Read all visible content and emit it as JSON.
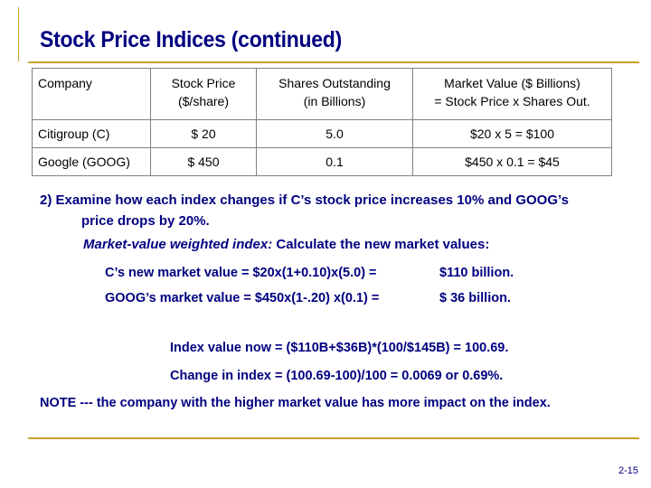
{
  "slide": {
    "title": "Stock Price Indices (continued)",
    "page_number": "2-15"
  },
  "table": {
    "headers": [
      {
        "line1": "Company",
        "line2": ""
      },
      {
        "line1": "Stock Price",
        "line2": "($/share)"
      },
      {
        "line1": "Shares Outstanding",
        "line2": "(in Billions)"
      },
      {
        "line1": "Market Value ($ Billions)",
        "line2": "= Stock Price x Shares Out."
      }
    ],
    "rows": [
      [
        "Citigroup (C)",
        "$ 20",
        "5.0",
        "$20 x 5 = $100"
      ],
      [
        "Google (GOOG)",
        "$ 450",
        "0.1",
        "$450 x 0.1 = $45"
      ]
    ]
  },
  "question": {
    "line1": "2) Examine how each index changes if C’s stock price increases 10% and GOOG’s",
    "line2": "price drops by 20%."
  },
  "market_value": {
    "heading_italic": "Market-value weighted index:",
    "heading_rest": " Calculate the new market values:",
    "lines": [
      {
        "lhs": "C’s new market value = $20x(1+0.10)x(5.0) =",
        "result": "$110 billion."
      },
      {
        "lhs": "GOOG’s market value = $450x(1-.20) x(0.1) =",
        "result": "$ 36 billion."
      }
    ]
  },
  "index": {
    "value_now": "Index value now = ($110B+$36B)*(100/$145B) = 100.69.",
    "change": "Change in index = (100.69-100)/100 = 0.0069 or 0.69%."
  },
  "note": "NOTE --- the company with the higher market value has more impact on the index.",
  "colors": {
    "accent_rule": "#c9a12a",
    "text_blue": "#000080"
  }
}
